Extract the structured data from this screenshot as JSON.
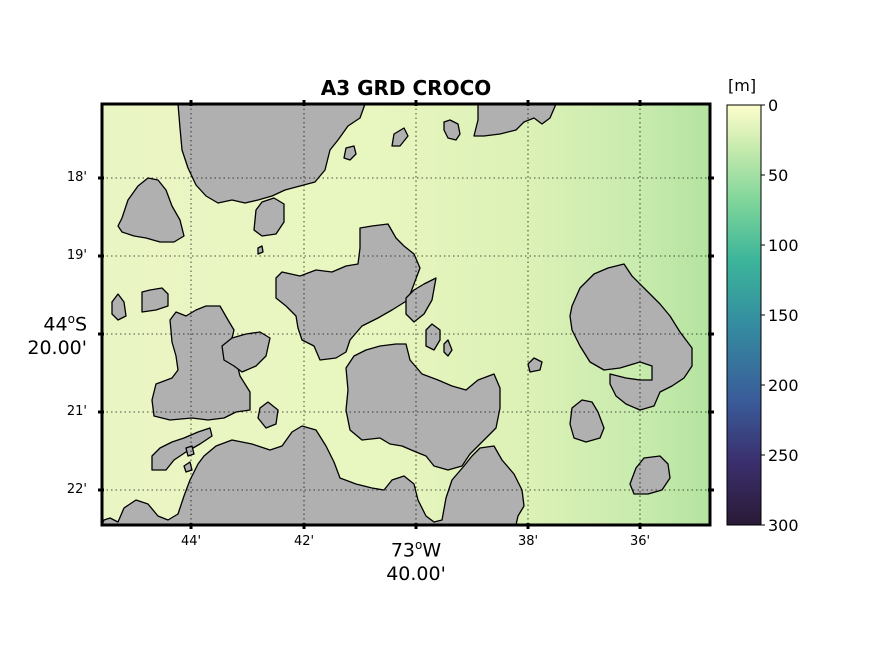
{
  "title": "A3 GRD CROCO",
  "colorbar": {
    "unit": "[m]",
    "ticks": [
      "0",
      "50",
      "100",
      "150",
      "200",
      "250",
      "300"
    ],
    "range": [
      0,
      300
    ],
    "colors": [
      "#2a1a36",
      "#3b2f6e",
      "#3a5d9a",
      "#348da0",
      "#3cb59a",
      "#7fd59a",
      "#c9ebae",
      "#fdfdcc"
    ]
  },
  "latitude": {
    "tick_labels": [
      "18'",
      "19'",
      "20.00'",
      "21'",
      "22'"
    ],
    "center_degree": "44",
    "center_hemisphere": "S",
    "center_minutes": "20.00'"
  },
  "longitude": {
    "tick_labels": [
      "44'",
      "42'",
      "40.00'",
      "38'",
      "36'"
    ],
    "center_degree": "73",
    "center_hemisphere": "W",
    "center_minutes": "40.00'"
  },
  "map_colors": {
    "land": "#b0b0b0",
    "water_west": "#eef6c8",
    "water_mid": "#e6f3bd",
    "water_east": "#bfe7a8",
    "grid": "#000000"
  }
}
